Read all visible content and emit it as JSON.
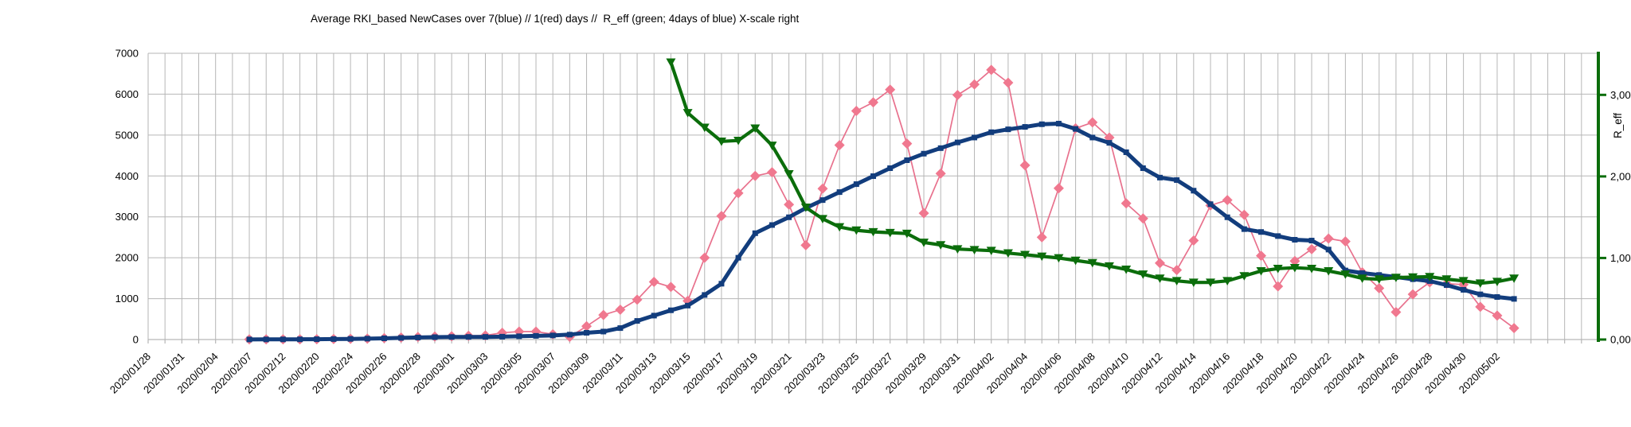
{
  "title": "Average RKI_based NewCases over 7(blue) // 1(red) days //  R_eff (green; 4days of blue) X-scale right",
  "left_axis": {
    "ticks": [
      {
        "v": 0,
        "label": "0"
      },
      {
        "v": 1000,
        "label": "1000"
      },
      {
        "v": 2000,
        "label": "2000"
      },
      {
        "v": 3000,
        "label": "3000"
      },
      {
        "v": 4000,
        "label": "4000"
      },
      {
        "v": 5000,
        "label": "5000"
      },
      {
        "v": 6000,
        "label": "6000"
      },
      {
        "v": 7000,
        "label": "7000"
      }
    ],
    "min": 0,
    "max": 7000
  },
  "right_axis": {
    "title": "R_eff",
    "ticks": [
      {
        "v": 0,
        "label": "0,00"
      },
      {
        "v": 1,
        "label": "1,00"
      },
      {
        "v": 2,
        "label": "2,00"
      },
      {
        "v": 3,
        "label": "3,00"
      }
    ],
    "min": 0,
    "max": 3.51,
    "color": "#0b6d0b"
  },
  "colors": {
    "grid": "#b6b6b6",
    "blue_series": "#123d7d",
    "red_line": "#e8718d",
    "red_marker": "#f0788f",
    "green_series": "#0b6d0b",
    "text": "#000000"
  },
  "chart_data": {
    "type": "line",
    "title": "Average RKI_based NewCases over 7(blue) // 1(red) days //  R_eff (green; 4days of blue) X-scale right",
    "x_labels": [
      "2020/01/28",
      "2020/01/31",
      "2020/02/04",
      "2020/02/07",
      "2020/02/12",
      "2020/02/20",
      "2020/02/24",
      "2020/02/26",
      "2020/02/28",
      "2020/03/01",
      "2020/03/03",
      "2020/03/05",
      "2020/03/07",
      "2020/03/09",
      "2020/03/11",
      "2020/03/13",
      "2020/03/15",
      "2020/03/17",
      "2020/03/19",
      "2020/03/21",
      "2020/03/23",
      "2020/03/25",
      "2020/03/27",
      "2020/03/29",
      "2020/03/31",
      "2020/04/02",
      "2020/04/04",
      "2020/04/06",
      "2020/04/08",
      "2020/04/10",
      "2020/04/12",
      "2020/04/14",
      "2020/04/16",
      "2020/04/18",
      "2020/04/20",
      "2020/04/22",
      "2020/04/24",
      "2020/04/26",
      "2020/04/28",
      "2020/04/30",
      "2020/05/02"
    ],
    "slots_per_label": 2,
    "total_slots": 86,
    "left_ylim": [
      0,
      7000
    ],
    "right_ylim": [
      0,
      3.51
    ],
    "grid": true,
    "legend": "none",
    "series": [
      {
        "name": "NewCases 1-day average (red)",
        "axis": "left",
        "marker": "diamond",
        "start_index": 6,
        "values": [
          4,
          5,
          6,
          5,
          8,
          12,
          16,
          22,
          33,
          48,
          62,
          74,
          80,
          92,
          100,
          165,
          195,
          195,
          130,
          66,
          325,
          600,
          730,
          975,
          1410,
          1285,
          945,
          2000,
          3020,
          3580,
          4000,
          4090,
          3300,
          2306,
          3690,
          4754,
          5590,
          5800,
          6110,
          4790,
          3090,
          4060,
          5980,
          6240,
          6595,
          6280,
          4260,
          2500,
          3700,
          5165,
          5310,
          4940,
          3330,
          2960,
          1870,
          1700,
          2420,
          3280,
          3410,
          3050,
          2050,
          1300,
          1920,
          2210,
          2470,
          2400,
          1644,
          1255,
          670,
          1105,
          1400,
          1365,
          1345,
          800,
          585,
          280
        ]
      },
      {
        "name": "NewCases 7-day average (blue)",
        "axis": "left",
        "marker": "square",
        "start_index": 6,
        "values": [
          2,
          3,
          4,
          5,
          8,
          12,
          16,
          22,
          30,
          40,
          50,
          58,
          62,
          64,
          65,
          70,
          80,
          90,
          100,
          120,
          165,
          195,
          280,
          455,
          585,
          715,
          830,
          1090,
          1365,
          2000,
          2600,
          2800,
          2990,
          3215,
          3410,
          3605,
          3800,
          3995,
          4190,
          4385,
          4545,
          4680,
          4820,
          4940,
          5070,
          5140,
          5200,
          5265,
          5280,
          5150,
          4940,
          4810,
          4580,
          4190,
          3960,
          3900,
          3640,
          3310,
          2990,
          2700,
          2630,
          2530,
          2440,
          2420,
          2200,
          1689,
          1625,
          1579,
          1528,
          1475,
          1430,
          1332,
          1216,
          1105,
          1040,
          994
        ]
      },
      {
        "name": "R_eff (green; 4days of blue)",
        "axis": "right",
        "marker": "triangle-down",
        "start_index": 31,
        "values": [
          3.4,
          2.78,
          2.6,
          2.43,
          2.44,
          2.59,
          2.38,
          2.03,
          1.62,
          1.48,
          1.38,
          1.34,
          1.32,
          1.31,
          1.3,
          1.19,
          1.16,
          1.11,
          1.1,
          1.09,
          1.06,
          1.04,
          1.02,
          1.0,
          0.97,
          0.94,
          0.9,
          0.86,
          0.8,
          0.75,
          0.72,
          0.7,
          0.7,
          0.72,
          0.78,
          0.84,
          0.87,
          0.88,
          0.87,
          0.84,
          0.8,
          0.75,
          0.74,
          0.76,
          0.765,
          0.77,
          0.74,
          0.72,
          0.69,
          0.71,
          0.75
        ]
      }
    ]
  }
}
